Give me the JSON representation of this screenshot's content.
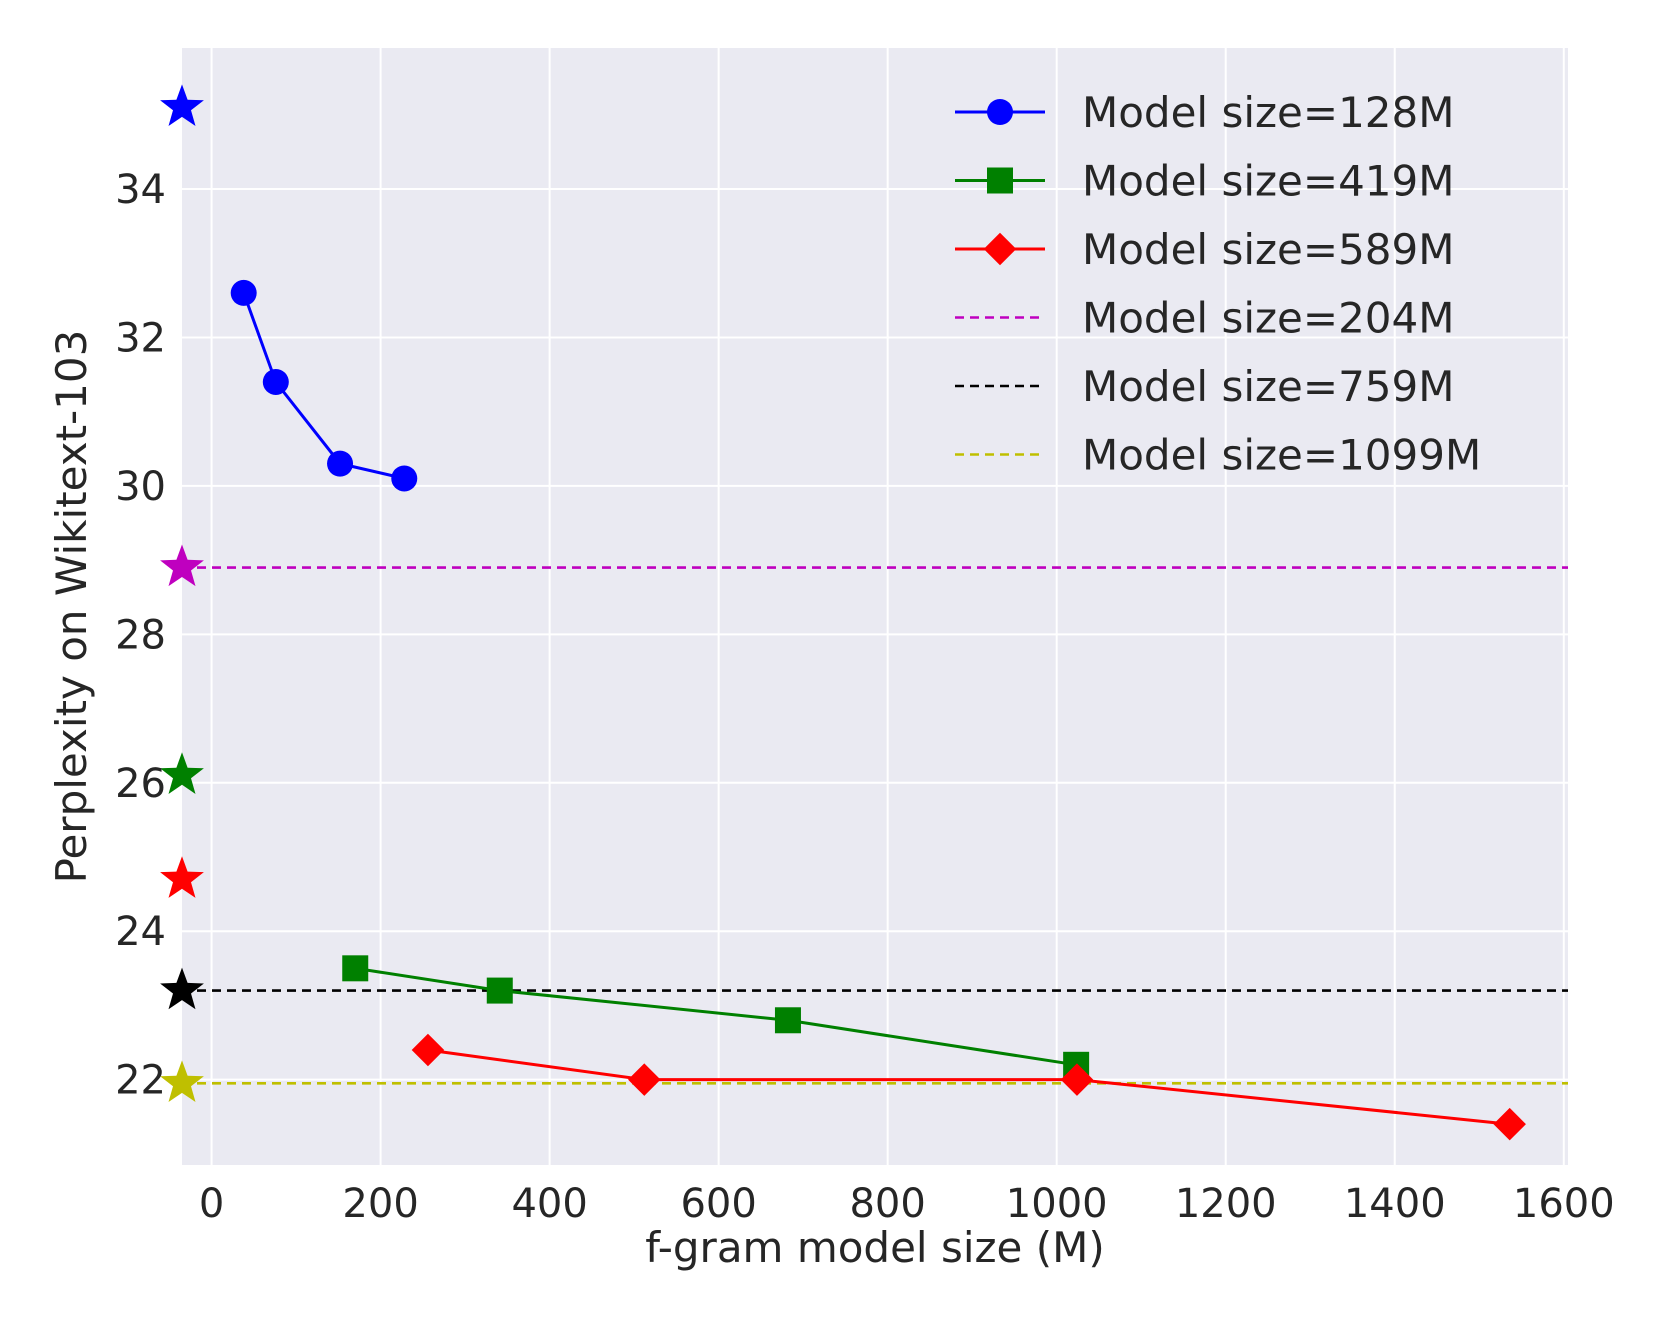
{
  "chart_data": {
    "type": "line",
    "title": "",
    "xlabel": "f-gram model size (M)",
    "ylabel": "Perplexity on Wikitext-103",
    "xlim": [
      -35,
      1605
    ],
    "ylim": [
      20.85,
      35.9
    ],
    "xticks": [
      0,
      200,
      400,
      600,
      800,
      1000,
      1200,
      1400,
      1600
    ],
    "yticks": [
      22,
      24,
      26,
      28,
      30,
      32,
      34
    ],
    "grid": true,
    "legend_position": "top-right",
    "series": [
      {
        "name": "Model size=128M",
        "color": "#0000ff",
        "marker": "circle",
        "linestyle": "solid",
        "x": [
          38,
          76,
          152,
          228
        ],
        "y": [
          32.6,
          31.4,
          30.3,
          30.1
        ]
      },
      {
        "name": "Model size=419M",
        "color": "#008000",
        "marker": "square",
        "linestyle": "solid",
        "x": [
          170,
          341,
          682,
          1023
        ],
        "y": [
          23.5,
          23.2,
          22.8,
          22.2
        ]
      },
      {
        "name": "Model size=589M",
        "color": "#ff0000",
        "marker": "diamond",
        "linestyle": "solid",
        "x": [
          256,
          512,
          1024,
          1536
        ],
        "y": [
          22.4,
          22.0,
          22.0,
          21.4
        ]
      },
      {
        "name": "Model size=204M",
        "color": "#bf00bf",
        "marker": "none",
        "linestyle": "dashed",
        "hline": 28.9
      },
      {
        "name": "Model size=759M",
        "color": "#000000",
        "marker": "none",
        "linestyle": "dashed",
        "hline": 23.2
      },
      {
        "name": "Model size=1099M",
        "color": "#bfbf00",
        "marker": "none",
        "linestyle": "dashed",
        "hline": 21.95
      }
    ],
    "baseline_stars": [
      {
        "y": 35.1,
        "color": "#0000ff"
      },
      {
        "y": 28.9,
        "color": "#bf00bf"
      },
      {
        "y": 26.1,
        "color": "#008000"
      },
      {
        "y": 24.7,
        "color": "#ff0000"
      },
      {
        "y": 23.2,
        "color": "#000000"
      },
      {
        "y": 21.95,
        "color": "#bfbf00"
      }
    ],
    "star_x": -35
  }
}
